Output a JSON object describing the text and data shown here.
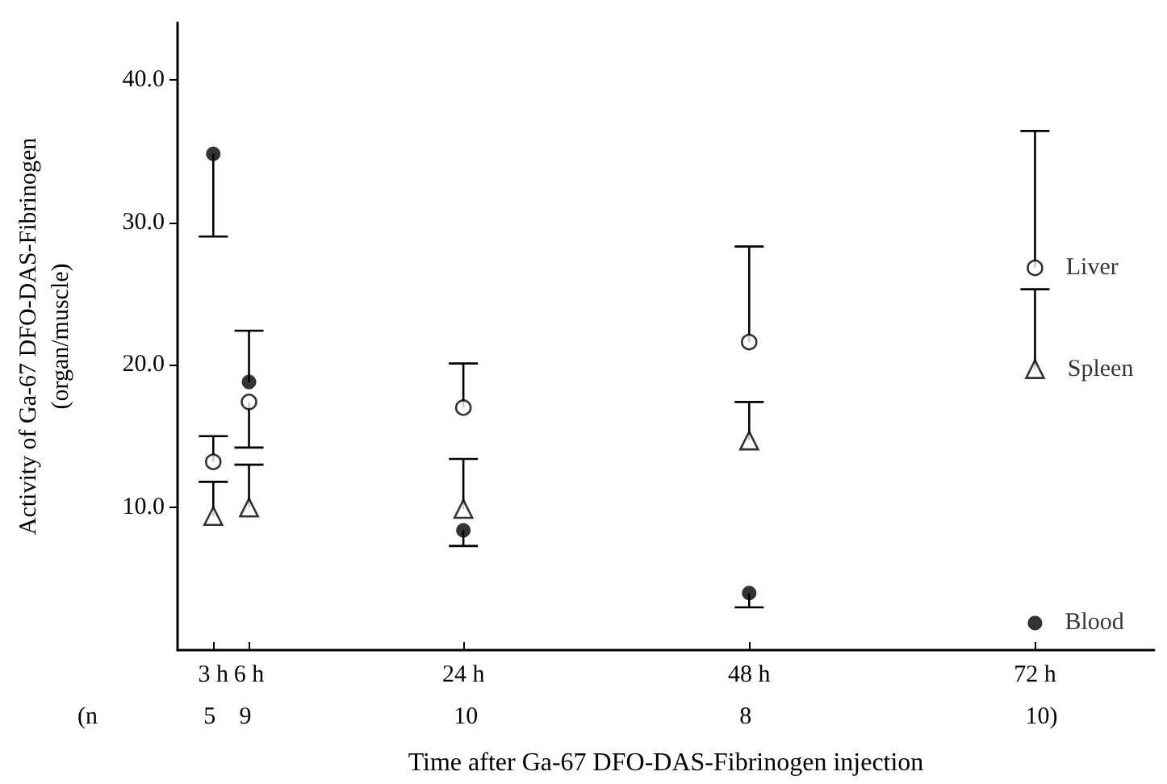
{
  "chart_data": {
    "type": "scatter",
    "xlabel": "Time after Ga-67 DFO-DAS-Fibrinogen injection",
    "ylabel": "Activity of Ga-67 DFO-DAS-Fibrinogen\n(organ/muscle)",
    "x": [
      3,
      6,
      24,
      48,
      72
    ],
    "xlim": [
      0,
      82
    ],
    "xticks": [
      {
        "value": 3,
        "label": "3 h"
      },
      {
        "value": 6,
        "label": "6 h"
      },
      {
        "value": 24,
        "label": "24 h"
      },
      {
        "value": 48,
        "label": "48 h"
      },
      {
        "value": 72,
        "label": "72 h"
      }
    ],
    "ylim": [
      0,
      44
    ],
    "yticks": [
      {
        "value": 10,
        "label": "10.0"
      },
      {
        "value": 20,
        "label": "20.0"
      },
      {
        "value": 30,
        "label": "30.0"
      },
      {
        "value": 40,
        "label": "40.0"
      }
    ],
    "series": [
      {
        "name": "Liver",
        "color": "#000000",
        "marker": "circle",
        "values": [
          13.2,
          17.4,
          17.0,
          21.6,
          26.8
        ],
        "errors": [
          [
            13.2,
            15.0
          ],
          [
            14.2,
            17.4
          ],
          [
            17.0,
            20.1
          ],
          [
            21.6,
            28.3
          ],
          [
            26.8,
            36.4
          ]
        ]
      },
      {
        "name": "Spleen",
        "color": "#000000",
        "marker": "triangle",
        "values": [
          9.4,
          10.0,
          9.9,
          14.7,
          19.7
        ],
        "errors": [
          [
            9.4,
            11.8
          ],
          [
            10.0,
            13.0
          ],
          [
            9.9,
            13.4
          ],
          [
            14.7,
            17.4
          ],
          [
            19.7,
            25.3
          ]
        ]
      },
      {
        "name": "Blood",
        "color": "#000000",
        "marker": "circle",
        "values": [
          34.8,
          18.8,
          8.4,
          4.0,
          1.9
        ],
        "errors": [
          [
            29.0,
            34.8
          ],
          [
            18.8,
            22.4
          ],
          [
            7.3,
            8.4
          ],
          [
            3.0,
            4.0
          ],
          null
        ]
      }
    ],
    "annotations": [
      "(n",
      "5",
      "9",
      "10",
      "8",
      "10)"
    ]
  }
}
